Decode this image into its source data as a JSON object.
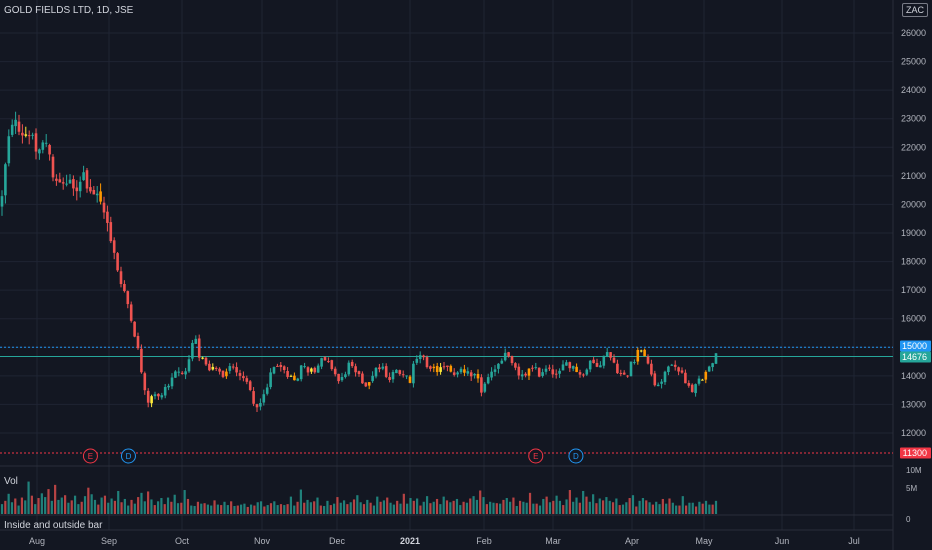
{
  "header": {
    "symbol_title": "GOLD FIELDS LTD, 1D, JSE",
    "currency": "ZAC"
  },
  "volume_pane": {
    "label": "Vol"
  },
  "indicator_pane": {
    "label": "Inside and outside bar"
  },
  "colors": {
    "background": "#131722",
    "grid": "#1f2433",
    "text": "#d1d4dc",
    "up": "#26a69a",
    "down": "#ef5350",
    "inside_bar": "#ffeb3b",
    "outside_bar": "#ff9800",
    "last_price_tag": "#26a69a",
    "level_15000_tag": "#2196f3",
    "level_11300_tag": "#f23645",
    "earnings_marker": "#f23645",
    "dividend_marker": "#2196f3"
  },
  "chart_data": {
    "type": "candlestick",
    "symbol": "GOLD FIELDS LTD",
    "interval": "1D",
    "exchange": "JSE",
    "currency": "ZAC",
    "x_tick_labels": [
      "Aug",
      "Sep",
      "Oct",
      "Nov",
      "Dec",
      "2021",
      "Feb",
      "Mar",
      "Apr",
      "May",
      "Jun",
      "Jul"
    ],
    "y_tick_labels": [
      "12000",
      "13000",
      "14000",
      "15000",
      "16000",
      "17000",
      "18000",
      "19000",
      "20000",
      "21000",
      "22000",
      "23000",
      "24000",
      "25000",
      "26000"
    ],
    "ylim": [
      11700,
      26300
    ],
    "volume_tick_labels": [
      "10M",
      "5M",
      "0"
    ],
    "volume_ylim": [
      0,
      10000000
    ],
    "horizontal_levels": [
      {
        "value": 15000,
        "label": "15000",
        "style": "dotted",
        "color": "#2196f3"
      },
      {
        "value": 14676,
        "label": "14676",
        "style": "solid",
        "color": "#26a69a"
      },
      {
        "value": 11300,
        "label": "11300",
        "style": "dotted",
        "color": "#f23645"
      }
    ],
    "last_price": 14676,
    "events": [
      {
        "type": "earnings",
        "label": "E",
        "date": "2020-08-24"
      },
      {
        "type": "dividend",
        "label": "D",
        "date": "2020-09-09"
      },
      {
        "type": "earnings",
        "label": "E",
        "date": "2021-02-22"
      },
      {
        "type": "dividend",
        "label": "D",
        "date": "2021-03-10"
      }
    ],
    "indicator": "Inside and outside bar",
    "volume_values": [
      2100000,
      2800000,
      4300000,
      2500000,
      3300000,
      1800000,
      3500000,
      2900000,
      6900000,
      3900000,
      2100000,
      3400000,
      4400000,
      3600000,
      5300000,
      2800000,
      6200000,
      3000000,
      3500000,
      4000000,
      2400000,
      2900000,
      3900000,
      2100000,
      2600000,
      3800000,
      5600000,
      4200000,
      3000000,
      2000000,
      3500000,
      3900000,
      2400000,
      3300000,
      2800000,
      4900000,
      2500000,
      3200000,
      1800000,
      3000000,
      2200000,
      3600000,
      4500000,
      2700000,
      4800000,
      3100000,
      1900000,
      2700000,
      3400000,
      2100000,
      3500000,
      2600000,
      4100000,
      2300000,
      2400000,
      5100000,
      3200000,
      1800000,
      1700000,
      2600000,
      2200000,
      2300000,
      2000000,
      1800000,
      2900000,
      2000000,
      1900000,
      2600000,
      1900000,
      2700000,
      1700000,
      1800000,
      2000000,
      2200000,
      1500000,
      2000000,
      1800000,
      2500000,
      2700000,
      1600000,
      1900000,
      2300000,
      2700000,
      1900000,
      2100000,
      1900000,
      2100000,
      3700000,
      1800000,
      2600000,
      5200000,
      2400000,
      3000000,
      2500000,
      2700000,
      3500000,
      1800000,
      1700000,
      2800000,
      1900000,
      2200000,
      3600000,
      2400000,
      2900000,
      2100000,
      2500000,
      3100000,
      4000000,
      2500000,
      2100000,
      3000000,
      2400000,
      1800000,
      3700000,
      2600000,
      2900000,
      3500000,
      2400000,
      2000000,
      2800000,
      2200000,
      4300000,
      2200000,
      3400000,
      2800000,
      3300000,
      1800000,
      2600000,
      3800000,
      2300000,
      2600000,
      3200000,
      2100000,
      3700000,
      2900000,
      2500000,
      2800000,
      3200000,
      1900000,
      2600000,
      2400000,
      3300000,
      3800000,
      3000000,
      5000000,
      3600000,
      2100000,
      2600000,
      2400000,
      2300000,
      2200000,
      3000000,
      3400000,
      2600000,
      3500000,
      1700000,
      2800000,
      2600000,
      2400000,
      4500000,
      2200000,
      2200000,
      1800000,
      3200000,
      3700000,
      2500000,
      2800000,
      3900000,
      2800000,
      1900000,
      3100000,
      5100000,
      2600000,
      3500000,
      2400000,
      4900000,
      3700000,
      2600000,
      4200000,
      2300000,
      3300000,
      2900000,
      3600000,
      2800000,
      2500000,
      3300000,
      1900000,
      2000000,
      2500000,
      3400000,
      4000000,
      1600000,
      2800000,
      3400000,
      2900000,
      2500000,
      2000000,
      2600000,
      2100000,
      3200000,
      2200000,
      3300000,
      2400000,
      1800000,
      1800000,
      3800000,
      1800000,
      2400000,
      2400000,
      1600000,
      2600000,
      2200000,
      2800000,
      2000000,
      2000000,
      2800000
    ]
  }
}
